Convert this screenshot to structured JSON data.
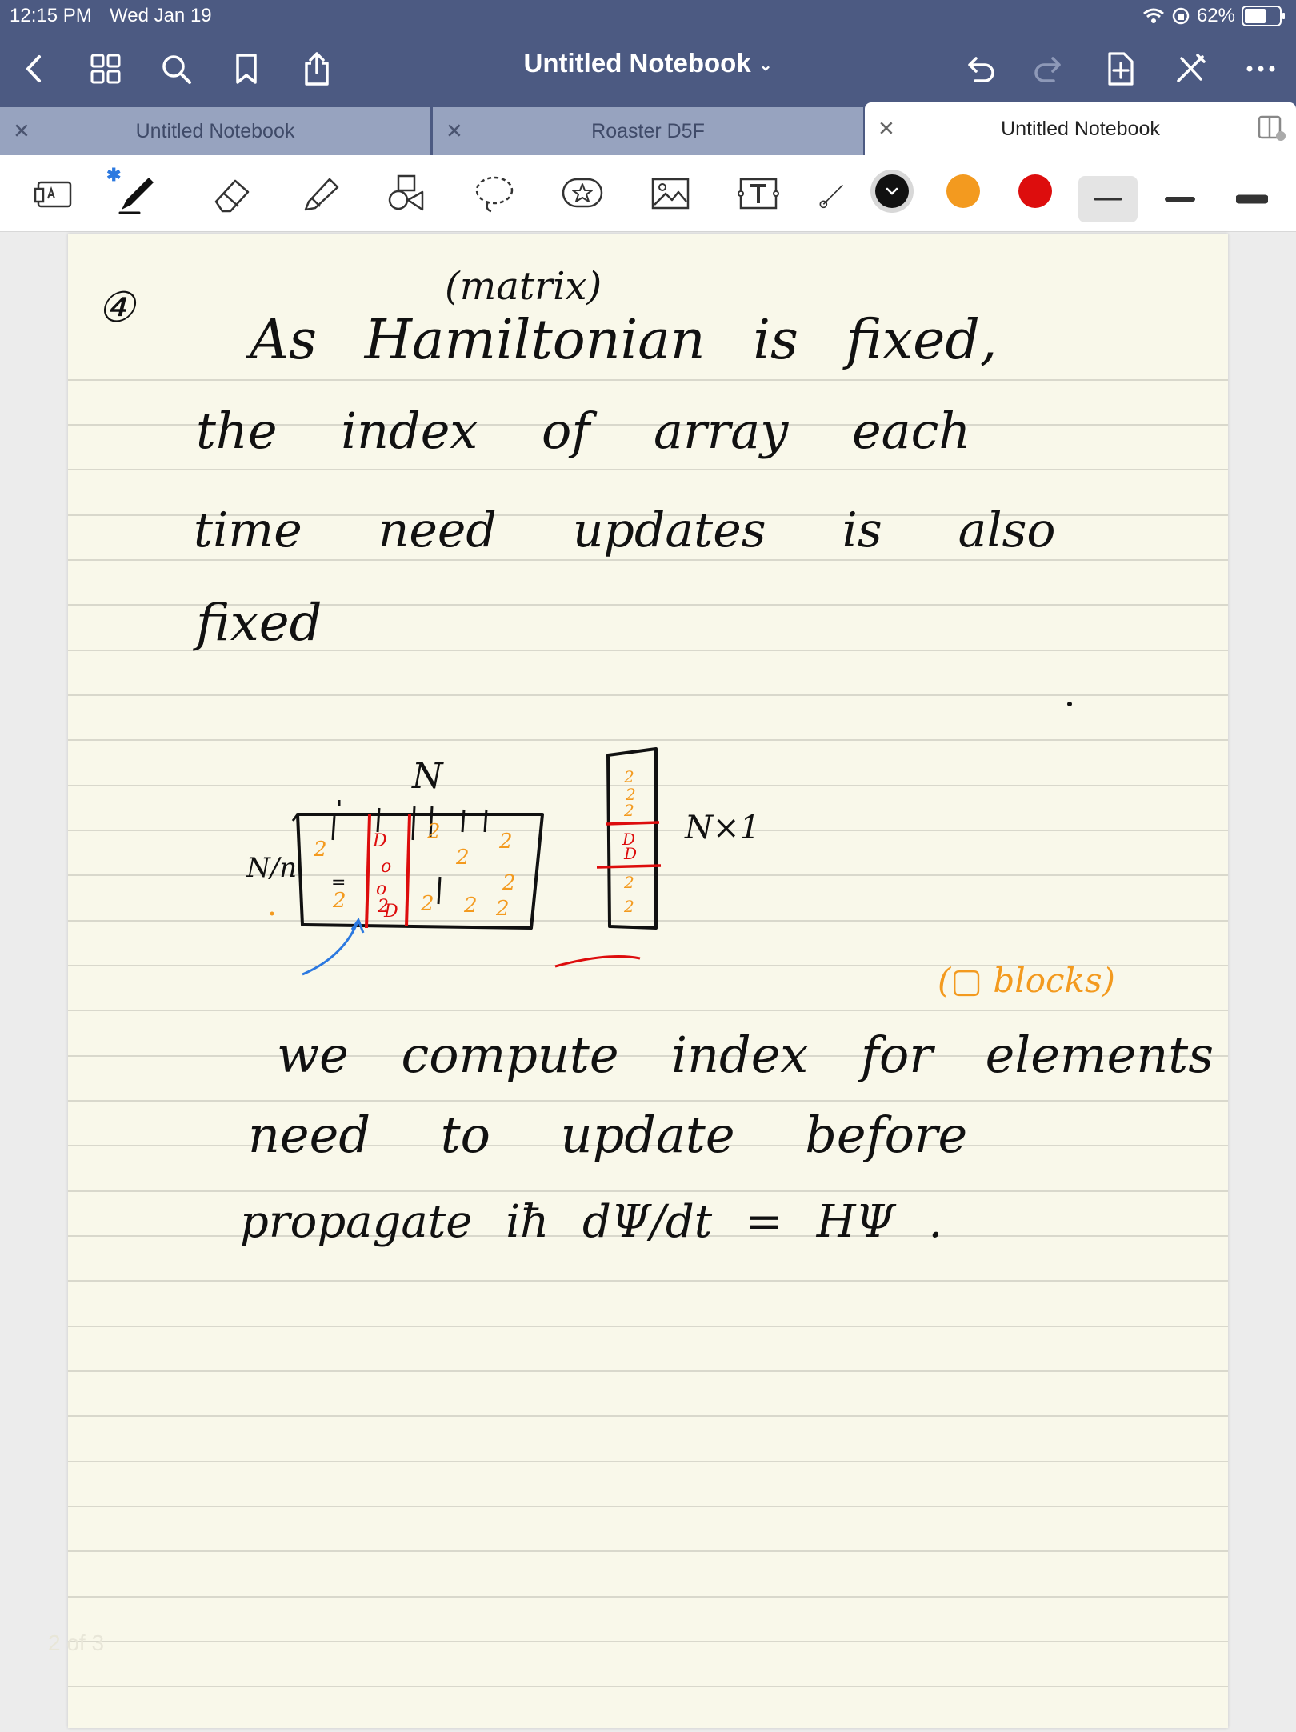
{
  "status_bar": {
    "time": "12:15 PM",
    "date": "Wed Jan 19",
    "battery": "62%",
    "battery_level": 0.62
  },
  "nav": {
    "title": "Untitled Notebook",
    "title_chevron": "⌄",
    "left_icons": [
      "back-icon",
      "grid-icon",
      "search-icon",
      "bookmark-icon",
      "share-icon"
    ],
    "right_icons": [
      "undo-icon",
      "redo-icon",
      "add-page-icon",
      "close-pen-icon",
      "more-icon"
    ]
  },
  "tabs": [
    {
      "label": "Untitled Notebook",
      "active": false
    },
    {
      "label": "Roaster D5F",
      "active": false
    },
    {
      "label": "Untitled Notebook",
      "active": true
    }
  ],
  "toolbar": {
    "tools": [
      "keyboard-tool",
      "pen-tool",
      "eraser-tool",
      "highlighter-tool",
      "shapes-tool",
      "lasso-tool",
      "sticker-tool",
      "image-tool",
      "text-tool",
      "laser-tool"
    ],
    "colors": [
      "#111111",
      "#f39a1f",
      "#dd0d0d"
    ],
    "selected_color": "#111111",
    "stroke_widths": [
      "thin",
      "medium",
      "thick"
    ],
    "selected_stroke": "thin"
  },
  "note": {
    "lines": [
      {
        "text": "④",
        "role": "item-number"
      },
      {
        "text": "(matrix)",
        "role": "annotation"
      },
      {
        "text": "As  Hamiltonian  is  fixed,",
        "role": "handwriting"
      },
      {
        "text": "the  index  of  array  each",
        "role": "handwriting"
      },
      {
        "text": "time  need  updates  is  also",
        "role": "handwriting"
      },
      {
        "text": "fixed",
        "role": "handwriting"
      },
      {
        "text": "N",
        "role": "diagram-label"
      },
      {
        "text": "N/n",
        "role": "diagram-label"
      },
      {
        "text": "N×1",
        "role": "diagram-label"
      },
      {
        "text": "(▢ blocks)",
        "role": "annotation"
      },
      {
        "text": "we  compute  index  for  elements",
        "role": "handwriting"
      },
      {
        "text": "need  to  update  before",
        "role": "handwriting"
      },
      {
        "text": "propagate   iħ dΨ/dt  =  HΨ .",
        "role": "handwriting"
      }
    ],
    "page_number": "2 of 3"
  }
}
